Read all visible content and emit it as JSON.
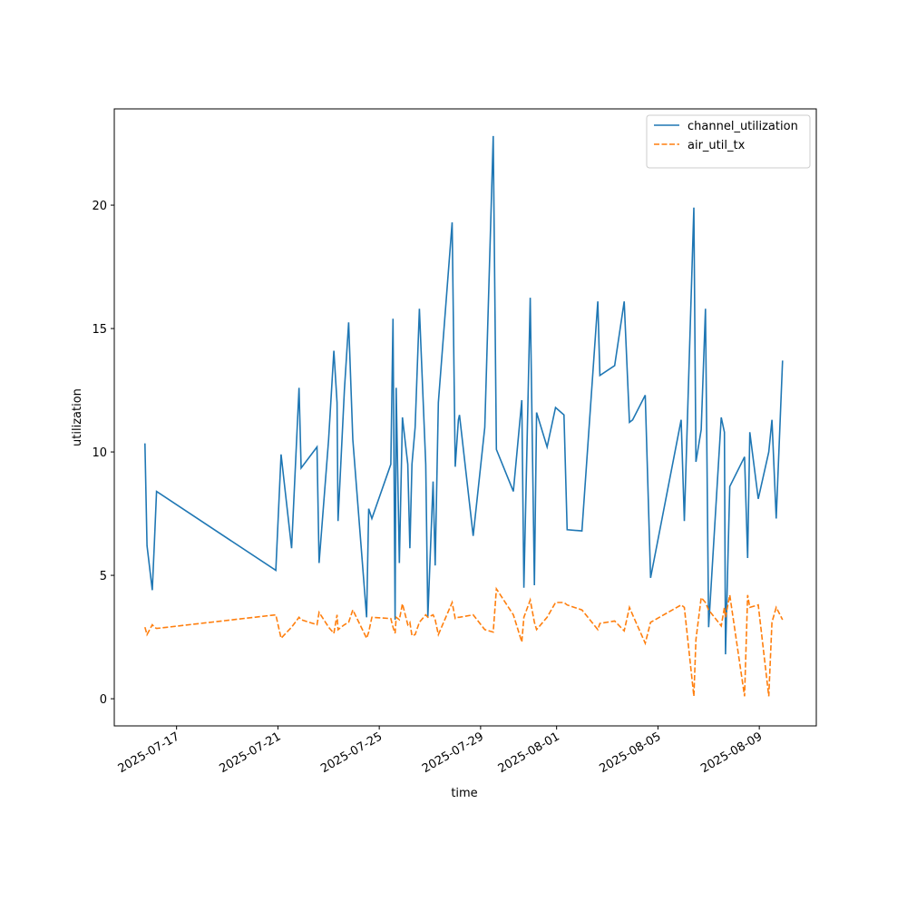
{
  "chart_data": {
    "type": "line",
    "xlabel": "time",
    "ylabel": "utilization",
    "x": [
      "2025-07-15T18:00",
      "2025-07-15T20:00",
      "2025-07-16T01:00",
      "2025-07-16T03:00",
      "2025-07-16T05:00",
      "2025-07-20T22:00",
      "2025-07-21T03:00",
      "2025-07-21T13:00",
      "2025-07-21T20:00",
      "2025-07-21T22:00",
      "2025-07-22T13:00",
      "2025-07-22T15:00",
      "2025-07-23T00:00",
      "2025-07-23T05:00",
      "2025-07-23T08:00",
      "2025-07-23T09:00",
      "2025-07-23T15:00",
      "2025-07-23T19:00",
      "2025-07-23T23:00",
      "2025-07-24T12:00",
      "2025-07-24T14:00",
      "2025-07-24T17:00",
      "2025-07-25T11:00",
      "2025-07-25T13:00",
      "2025-07-25T15:00",
      "2025-07-25T16:00",
      "2025-07-25T19:00",
      "2025-07-25T22:00",
      "2025-07-26T03:00",
      "2025-07-26T05:00",
      "2025-07-26T07:00",
      "2025-07-26T10:00",
      "2025-07-26T14:00",
      "2025-07-26T20:00",
      "2025-07-26T22:00",
      "2025-07-27T03:00",
      "2025-07-27T05:00",
      "2025-07-27T08:00",
      "2025-07-27T21:00",
      "2025-07-28T00:00",
      "2025-07-28T03:00",
      "2025-07-28T04:00",
      "2025-07-28T17:00",
      "2025-07-29T04:00",
      "2025-07-29T12:00",
      "2025-07-29T15:00",
      "2025-07-30T07:00",
      "2025-07-30T15:00",
      "2025-07-30T17:00",
      "2025-07-30T23:00",
      "2025-07-31T03:00",
      "2025-07-31T05:00",
      "2025-07-31T15:00",
      "2025-07-31T23:00",
      "2025-08-01T07:00",
      "2025-08-01T10:00",
      "2025-08-02T00:00",
      "2025-08-02T15:00",
      "2025-08-02T17:00",
      "2025-08-03T07:00",
      "2025-08-03T16:00",
      "2025-08-03T21:00",
      "2025-08-04T00:00",
      "2025-08-04T12:00",
      "2025-08-04T17:00",
      "2025-08-05T22:00",
      "2025-08-06T01:00",
      "2025-08-06T10:00",
      "2025-08-06T12:00",
      "2025-08-06T17:00",
      "2025-08-06T21:00",
      "2025-08-07T00:00",
      "2025-08-07T12:00",
      "2025-08-07T15:00",
      "2025-08-07T16:00",
      "2025-08-07T20:00",
      "2025-08-08T10:00",
      "2025-08-08T13:00",
      "2025-08-08T15:00",
      "2025-08-08T23:00",
      "2025-08-09T09:00",
      "2025-08-09T12:00",
      "2025-08-09T16:00",
      "2025-08-09T22:00"
    ],
    "series": [
      {
        "name": "channel_utilization",
        "color": "#1f77b4",
        "linestyle": "solid",
        "values": [
          10.35,
          6.2,
          4.4,
          6.3,
          8.4,
          5.2,
          9.9,
          6.1,
          12.6,
          9.35,
          10.2,
          5.5,
          10.5,
          14.1,
          12,
          7.2,
          12.5,
          15.25,
          10.5,
          3.3,
          7.7,
          7.3,
          9.5,
          15.4,
          3.2,
          12.6,
          5.5,
          11.4,
          9.5,
          6.1,
          9.5,
          11,
          15.8,
          9.5,
          3.3,
          8.8,
          5.4,
          12,
          19.3,
          9.4,
          11.3,
          11.5,
          6.6,
          11,
          22.8,
          10.1,
          8.4,
          12.1,
          4.5,
          16.25,
          4.6,
          11.6,
          10.2,
          11.8,
          11.5,
          6.85,
          6.8,
          16.1,
          13.1,
          13.5,
          16.1,
          11.2,
          11.3,
          12.3,
          4.9,
          11.3,
          7.2,
          19.9,
          9.6,
          10.9,
          15.8,
          2.9,
          11.4,
          10.8,
          1.8,
          8.6,
          9.8,
          5.7,
          10.8,
          8.1,
          10,
          11.3,
          7.3,
          13.7
        ]
      },
      {
        "name": "air_util_tx",
        "color": "#ff7f0e",
        "linestyle": "dashed",
        "values": [
          2.9,
          2.6,
          3.0,
          2.9,
          2.85,
          3.4,
          2.45,
          2.9,
          3.3,
          3.2,
          3.0,
          3.5,
          2.9,
          2.65,
          3.4,
          2.8,
          3.0,
          3.1,
          3.6,
          2.45,
          2.7,
          3.3,
          3.25,
          2.9,
          2.65,
          3.3,
          3.2,
          3.85,
          3.0,
          3.1,
          2.55,
          2.6,
          3.1,
          3.4,
          3.3,
          3.4,
          3.2,
          2.6,
          3.9,
          3.25,
          3.3,
          3.3,
          3.4,
          2.8,
          2.7,
          4.45,
          3.4,
          2.3,
          3.3,
          4.0,
          3.1,
          2.8,
          3.3,
          3.9,
          3.9,
          3.8,
          3.6,
          2.8,
          3.05,
          3.15,
          2.75,
          3.7,
          3.4,
          2.25,
          3.1,
          3.8,
          3.7,
          0.1,
          2.4,
          4.1,
          3.9,
          3.6,
          2.95,
          3.7,
          3.3,
          4.2,
          0.1,
          4.2,
          3.7,
          3.8,
          0.1,
          3.1,
          3.7,
          3.2
        ]
      }
    ],
    "xlim": [
      "2025-07-14T13:00",
      "2025-08-11T06:00"
    ],
    "xticks": [
      "2025-07-17",
      "2025-07-21",
      "2025-07-25",
      "2025-07-29",
      "2025-08-01",
      "2025-08-05",
      "2025-08-09"
    ],
    "ylim": [
      -1.1,
      23.9
    ],
    "yticks": [
      0,
      5,
      10,
      15,
      20
    ],
    "legend": "upper right",
    "grid": false
  }
}
